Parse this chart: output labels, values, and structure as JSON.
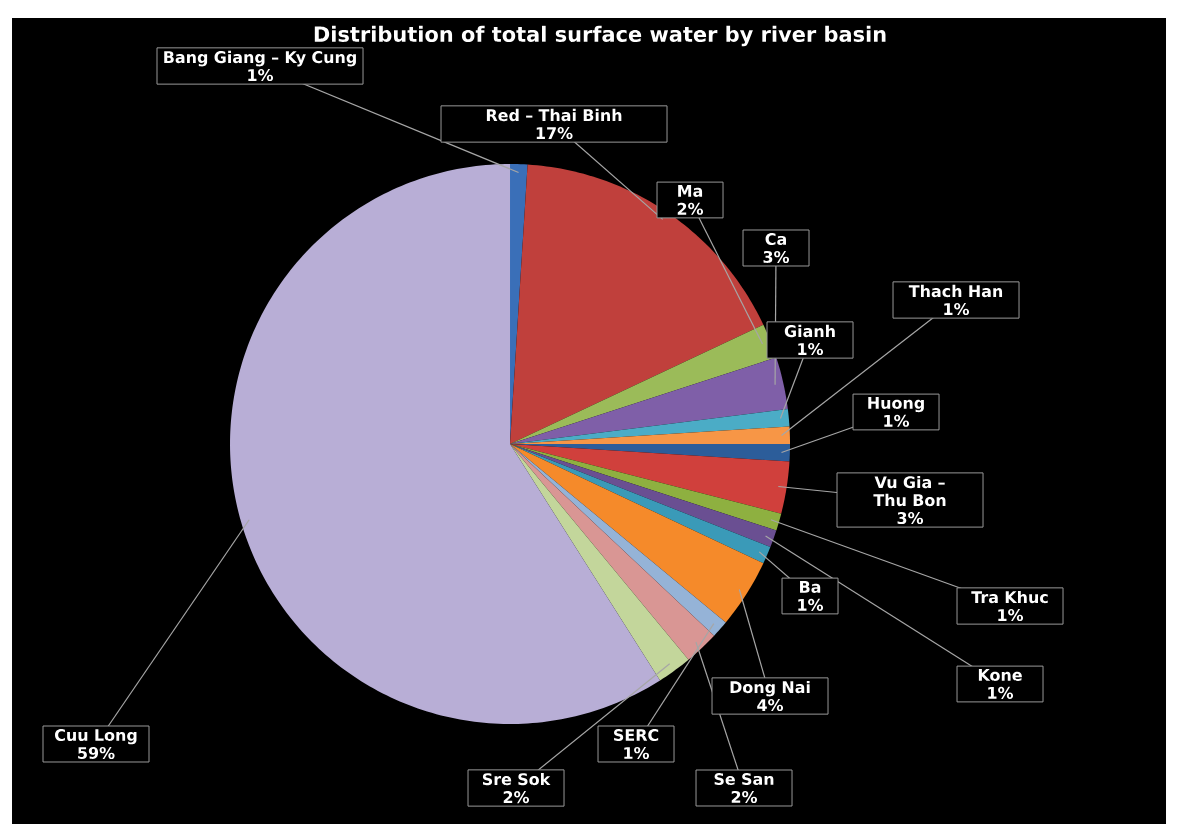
{
  "chart_data": {
    "type": "pie",
    "title": "Distribution of total surface water by river basin",
    "categories": [
      "Bang Giang – Ky Cung",
      "Red – Thai Binh",
      "Ma",
      "Ca",
      "Gianh",
      "Thach Han",
      "Huong",
      "Vu Gia – Thu Bon",
      "Tra Khuc",
      "Kone",
      "Ba",
      "Dong Nai",
      "SERC",
      "Se San",
      "Sre Sok",
      "Cuu Long"
    ],
    "values": [
      1,
      17,
      2,
      3,
      1,
      1,
      1,
      3,
      1,
      1,
      1,
      4,
      1,
      2,
      2,
      59
    ],
    "value_labels": [
      "1%",
      "17%",
      "2%",
      "3%",
      "1%",
      "1%",
      "1%",
      "3%",
      "1%",
      "1%",
      "1%",
      "4%",
      "1%",
      "2%",
      "2%",
      "59%"
    ],
    "colors": [
      "#3a6fb8",
      "#c0403c",
      "#9bbb59",
      "#7f5fa8",
      "#4bacc6",
      "#f79646",
      "#2c5d9a",
      "#d0403c",
      "#8eb040",
      "#6a4f92",
      "#3a9ab8",
      "#f58a2a",
      "#95b3d7",
      "#d99694",
      "#c3d69b",
      "#b8aed6"
    ]
  }
}
